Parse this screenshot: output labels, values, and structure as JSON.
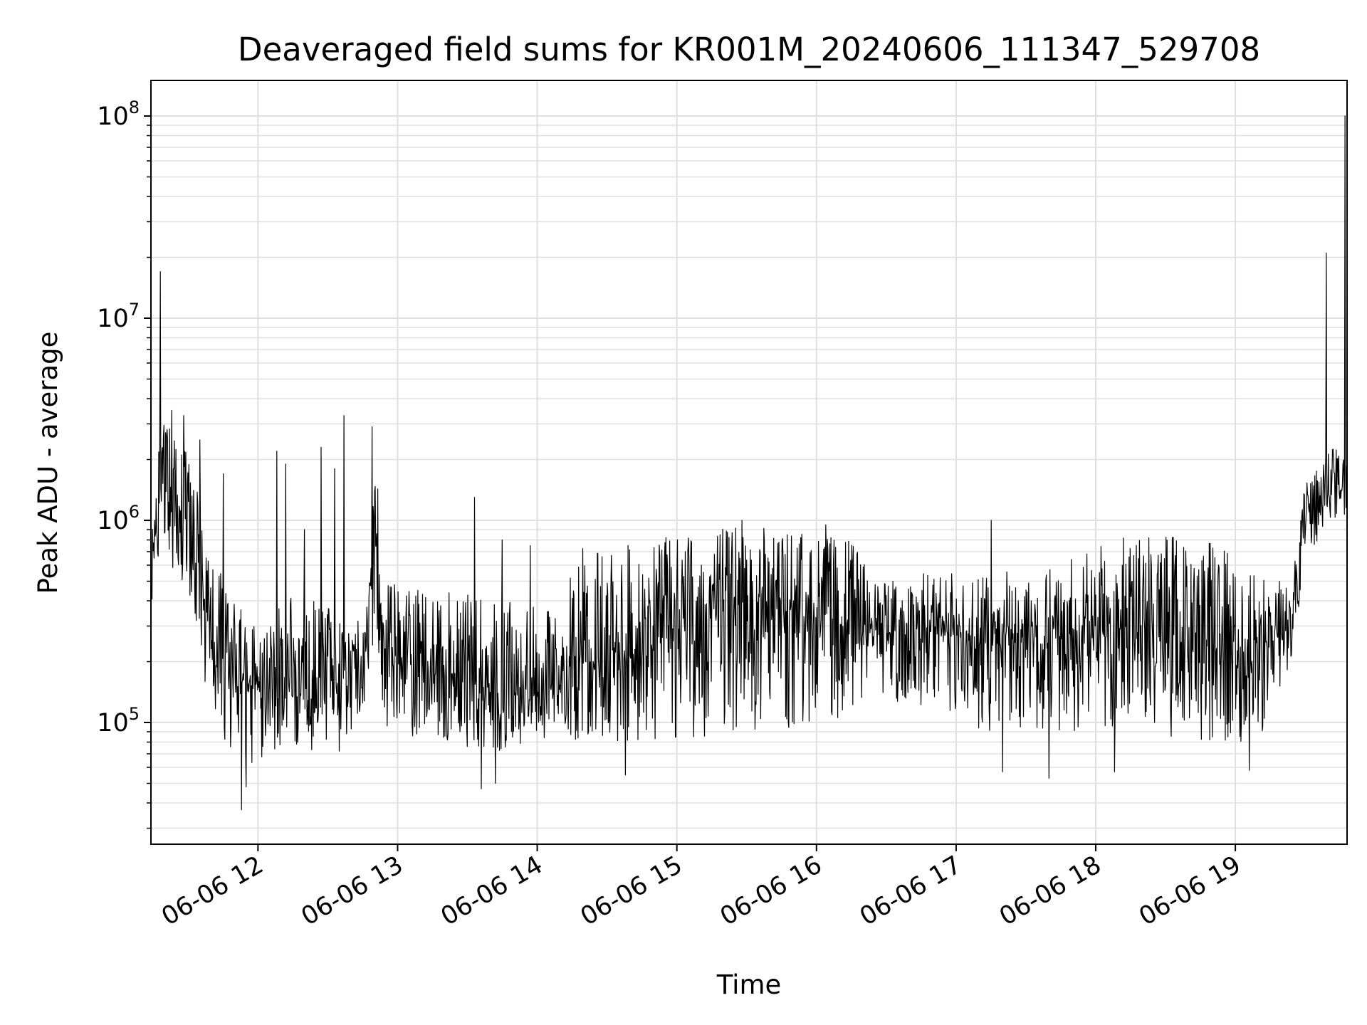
{
  "chart_data": {
    "type": "line",
    "title": "Deaveraged field sums for KR001M_20240606_111347_529708",
    "xlabel": "Time",
    "ylabel": "Peak ADU - average",
    "yscale": "log",
    "ylim": [
      25000,
      150000000
    ],
    "xlim": [
      "2024-06-06T11:14",
      "2024-06-06T19:48"
    ],
    "grid": true,
    "line_color": "#000000",
    "x_ticks": [
      {
        "value": "2024-06-06T12:00",
        "label": "06-06 12"
      },
      {
        "value": "2024-06-06T13:00",
        "label": "06-06 13"
      },
      {
        "value": "2024-06-06T14:00",
        "label": "06-06 14"
      },
      {
        "value": "2024-06-06T15:00",
        "label": "06-06 15"
      },
      {
        "value": "2024-06-06T16:00",
        "label": "06-06 16"
      },
      {
        "value": "2024-06-06T17:00",
        "label": "06-06 17"
      },
      {
        "value": "2024-06-06T18:00",
        "label": "06-06 18"
      },
      {
        "value": "2024-06-06T19:00",
        "label": "06-06 19"
      }
    ],
    "y_ticks": [
      {
        "value": 100000,
        "base": "10",
        "exp": "5"
      },
      {
        "value": 1000000,
        "base": "10",
        "exp": "6"
      },
      {
        "value": 10000000,
        "base": "10",
        "exp": "7"
      },
      {
        "value": 100000000,
        "base": "10",
        "exp": "8"
      }
    ],
    "series": [
      {
        "envelope": [
          {
            "t": "2024-06-06T11:14",
            "low": 300000,
            "high": 700000,
            "mid": 450000
          },
          {
            "t": "2024-06-06T11:18",
            "low": 800000,
            "high": 3500000,
            "mid": 1500000
          },
          {
            "t": "2024-06-06T11:25",
            "low": 500000,
            "high": 2500000,
            "mid": 1100000
          },
          {
            "t": "2024-06-06T11:32",
            "low": 350000,
            "high": 2000000,
            "mid": 800000
          },
          {
            "t": "2024-06-06T11:40",
            "low": 100000,
            "high": 700000,
            "mid": 250000
          },
          {
            "t": "2024-06-06T11:50",
            "low": 70000,
            "high": 400000,
            "mid": 170000
          },
          {
            "t": "2024-06-06T12:00",
            "low": 60000,
            "high": 300000,
            "mid": 150000
          },
          {
            "t": "2024-06-06T12:15",
            "low": 75000,
            "high": 450000,
            "mid": 180000
          },
          {
            "t": "2024-06-06T12:35",
            "low": 70000,
            "high": 350000,
            "mid": 160000
          },
          {
            "t": "2024-06-06T12:48",
            "low": 120000,
            "high": 500000,
            "mid": 250000
          },
          {
            "t": "2024-06-06T12:50",
            "low": 300000,
            "high": 2500000,
            "mid": 900000
          },
          {
            "t": "2024-06-06T12:55",
            "low": 90000,
            "high": 500000,
            "mid": 200000
          },
          {
            "t": "2024-06-06T13:20",
            "low": 80000,
            "high": 450000,
            "mid": 170000
          },
          {
            "t": "2024-06-06T13:45",
            "low": 70000,
            "high": 400000,
            "mid": 140000
          },
          {
            "t": "2024-06-06T14:10",
            "low": 90000,
            "high": 350000,
            "mid": 150000
          },
          {
            "t": "2024-06-06T14:18",
            "low": 80000,
            "high": 800000,
            "mid": 200000
          },
          {
            "t": "2024-06-06T14:40",
            "low": 80000,
            "high": 750000,
            "mid": 230000
          },
          {
            "t": "2024-06-06T15:00",
            "low": 80000,
            "high": 850000,
            "mid": 280000
          },
          {
            "t": "2024-06-06T15:25",
            "low": 90000,
            "high": 950000,
            "mid": 400000
          },
          {
            "t": "2024-06-06T15:50",
            "low": 90000,
            "high": 900000,
            "mid": 350000
          },
          {
            "t": "2024-06-06T16:15",
            "low": 110000,
            "high": 800000,
            "mid": 300000
          },
          {
            "t": "2024-06-06T16:25",
            "low": 150000,
            "high": 500000,
            "mid": 280000
          },
          {
            "t": "2024-06-06T16:45",
            "low": 100000,
            "high": 550000,
            "mid": 280000
          },
          {
            "t": "2024-06-06T17:10",
            "low": 90000,
            "high": 550000,
            "mid": 250000
          },
          {
            "t": "2024-06-06T17:40",
            "low": 90000,
            "high": 600000,
            "mid": 250000
          },
          {
            "t": "2024-06-06T18:00",
            "low": 90000,
            "high": 750000,
            "mid": 300000
          },
          {
            "t": "2024-06-06T18:25",
            "low": 85000,
            "high": 900000,
            "mid": 300000
          },
          {
            "t": "2024-06-06T18:50",
            "low": 80000,
            "high": 800000,
            "mid": 250000
          },
          {
            "t": "2024-06-06T19:10",
            "low": 80000,
            "high": 600000,
            "mid": 220000
          },
          {
            "t": "2024-06-06T19:24",
            "low": 200000,
            "high": 500000,
            "mid": 300000
          },
          {
            "t": "2024-06-06T19:30",
            "low": 600000,
            "high": 1500000,
            "mid": 1000000
          },
          {
            "t": "2024-06-06T19:40",
            "low": 1000000,
            "high": 2200000,
            "mid": 1500000
          },
          {
            "t": "2024-06-06T19:48",
            "low": 1000000,
            "high": 2500000,
            "mid": 1500000
          }
        ],
        "spikes": [
          {
            "t": "2024-06-06T11:18",
            "v": 17000000
          },
          {
            "t": "2024-06-06T11:23",
            "v": 3500000
          },
          {
            "t": "2024-06-06T11:28",
            "v": 3300000
          },
          {
            "t": "2024-06-06T11:35",
            "v": 2500000
          },
          {
            "t": "2024-06-06T11:45",
            "v": 1700000
          },
          {
            "t": "2024-06-06T11:55",
            "v": 1100000
          },
          {
            "t": "2024-06-06T12:08",
            "v": 2200000
          },
          {
            "t": "2024-06-06T12:12",
            "v": 1900000
          },
          {
            "t": "2024-06-06T12:20",
            "v": 900000
          },
          {
            "t": "2024-06-06T12:27",
            "v": 2300000
          },
          {
            "t": "2024-06-06T12:33",
            "v": 1800000
          },
          {
            "t": "2024-06-06T12:37",
            "v": 3300000
          },
          {
            "t": "2024-06-06T12:49",
            "v": 2900000
          },
          {
            "t": "2024-06-06T13:33",
            "v": 1300000
          },
          {
            "t": "2024-06-06T13:45",
            "v": 800000
          },
          {
            "t": "2024-06-06T13:57",
            "v": 750000
          },
          {
            "t": "2024-06-06T15:28",
            "v": 1000000
          },
          {
            "t": "2024-06-06T16:04",
            "v": 950000
          },
          {
            "t": "2024-06-06T17:15",
            "v": 1000000
          },
          {
            "t": "2024-06-06T19:39",
            "v": 21000000
          },
          {
            "t": "2024-06-06T19:47",
            "v": 100000000
          }
        ],
        "dips": [
          {
            "t": "2024-06-06T11:53",
            "v": 37000
          },
          {
            "t": "2024-06-06T11:55",
            "v": 48000
          },
          {
            "t": "2024-06-06T13:36",
            "v": 47000
          },
          {
            "t": "2024-06-06T13:42",
            "v": 50000
          },
          {
            "t": "2024-06-06T14:38",
            "v": 55000
          },
          {
            "t": "2024-06-06T17:20",
            "v": 57000
          },
          {
            "t": "2024-06-06T17:40",
            "v": 53000
          },
          {
            "t": "2024-06-06T18:08",
            "v": 57000
          },
          {
            "t": "2024-06-06T19:06",
            "v": 58000
          }
        ]
      }
    ]
  }
}
